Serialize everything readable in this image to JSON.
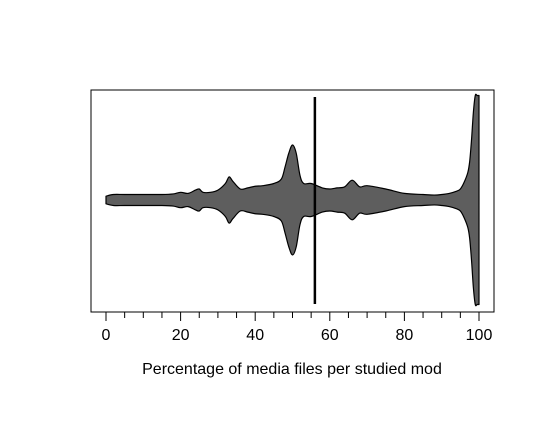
{
  "chart_data": {
    "type": "area",
    "subtype": "violin",
    "title": "",
    "xlabel": "Percentage of media files per studied mod",
    "ylabel": "",
    "xlim": [
      0,
      100
    ],
    "xticks": [
      0,
      20,
      40,
      60,
      80,
      100
    ],
    "xtick_labels": [
      "0",
      "20",
      "40",
      "60",
      "80",
      "100"
    ],
    "minor_ticks_step": 5,
    "density": {
      "x": [
        0,
        2,
        5,
        10,
        15,
        18,
        20,
        22,
        24,
        25,
        26,
        28,
        30,
        32,
        33,
        34,
        36,
        38,
        40,
        42,
        45,
        47,
        48,
        49,
        50,
        51,
        52,
        53,
        55,
        58,
        60,
        62,
        64,
        66,
        68,
        70,
        75,
        80,
        85,
        88,
        90,
        92,
        94,
        95,
        96,
        97,
        97.5,
        98,
        98.5,
        99,
        99.5,
        100
      ],
      "half_width": [
        0.07,
        0.1,
        0.1,
        0.1,
        0.1,
        0.11,
        0.14,
        0.12,
        0.18,
        0.2,
        0.14,
        0.14,
        0.18,
        0.3,
        0.42,
        0.34,
        0.2,
        0.22,
        0.25,
        0.26,
        0.3,
        0.38,
        0.6,
        0.85,
        1.0,
        0.85,
        0.45,
        0.3,
        0.3,
        0.22,
        0.2,
        0.22,
        0.24,
        0.36,
        0.24,
        0.26,
        0.2,
        0.12,
        0.1,
        0.09,
        0.1,
        0.12,
        0.16,
        0.2,
        0.32,
        0.5,
        0.7,
        1.1,
        1.6,
        1.9,
        1.9,
        1.9
      ]
    },
    "median": 56,
    "fill_color": "#5e5e5e",
    "line_color": "#000000",
    "grid": false,
    "legend": "none"
  }
}
